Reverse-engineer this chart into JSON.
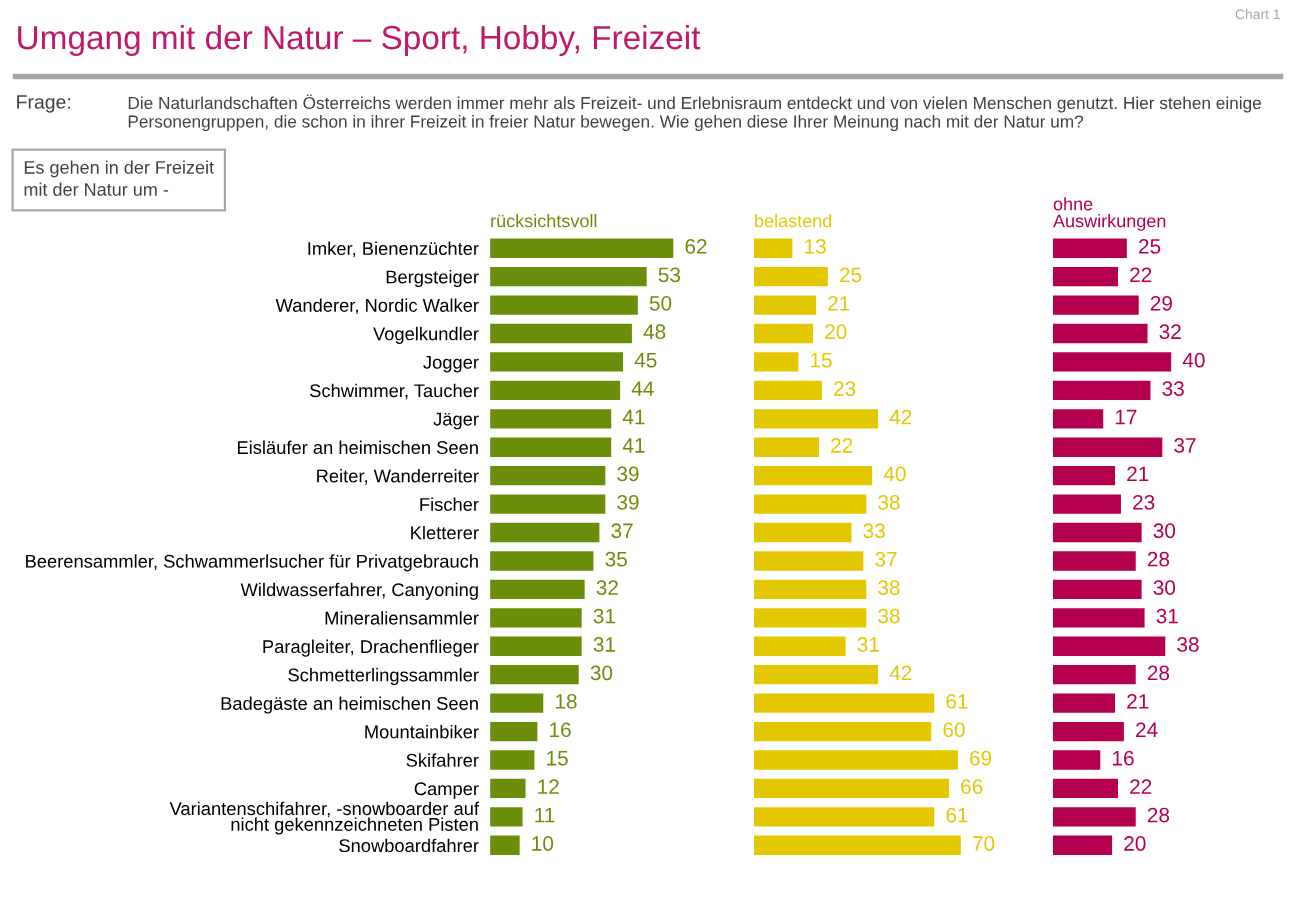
{
  "chart_data": [
    {
      "type": "bar",
      "orientation": "horizontal",
      "data_labels": true,
      "tick_labels": "y",
      "title": "Umgang mit der Natur – Sport, Hobby, Freizeit",
      "annotations": [
        "Chart 1",
        "Frage:",
        "Die Naturlandschaften Österreichs werden immer mehr als Freizeit- und Erlebnisraum entdeckt und von vielen Menschen genutzt. Hier stehen einige\nPersonengruppen, die schon in ihrer Freizeit in freier Natur bewegen. Wie gehen diese Ihrer Meinung nach mit der Natur um?",
        "Es gehen in der Freizeit\nmit der Natur um -"
      ],
      "categories": [
        "Imker, Bienenzüchter",
        "Bergsteiger",
        "Wanderer, Nordic Walker",
        "Vogelkundler",
        "Jogger",
        "Schwimmer, Taucher",
        "Jäger",
        "Eisläufer an heimischen Seen",
        "Reiter, Wanderreiter",
        "Fischer",
        "Kletterer",
        "Beerensammler, Schwammerlsucher für Privatgebrauch",
        "Wildwasserfahrer, Canyoning",
        "Mineraliensammler",
        "Paragleiter, Drachenflieger",
        "Schmetterlingssammler",
        "Badegäste an heimischen Seen",
        "Mountainbiker",
        "Skifahrer",
        "Camper",
        "Variantenschifahrer, -snowboarder auf\nnicht gekennzeichneten Pisten",
        "Snowboardfahrer"
      ],
      "series": [
        {
          "name": "rücksichtsvoll",
          "color": "#6b8e0a",
          "values": [
            62,
            53,
            50,
            48,
            45,
            44,
            41,
            41,
            39,
            39,
            37,
            35,
            32,
            31,
            31,
            30,
            18,
            16,
            15,
            12,
            11,
            10
          ]
        }
      ]
    },
    {
      "type": "bar",
      "orientation": "horizontal",
      "data_labels": true,
      "tick_labels": false,
      "categories": [
        null,
        null,
        null,
        null,
        null,
        null,
        null,
        null,
        null,
        null,
        null,
        null,
        null,
        null,
        null,
        null,
        null,
        null,
        null,
        null,
        null,
        null
      ],
      "series": [
        {
          "name": "belastend",
          "color": "#e3c800",
          "values": [
            13,
            25,
            21,
            20,
            15,
            23,
            42,
            22,
            40,
            38,
            33,
            37,
            38,
            38,
            31,
            42,
            61,
            60,
            69,
            66,
            61,
            70
          ]
        }
      ]
    },
    {
      "type": "bar",
      "orientation": "horizontal",
      "data_labels": true,
      "tick_labels": false,
      "categories": [
        null,
        null,
        null,
        null,
        null,
        null,
        null,
        null,
        null,
        null,
        null,
        null,
        null,
        null,
        null,
        null,
        null,
        null,
        null,
        null,
        null,
        null
      ],
      "series": [
        {
          "name": "ohne\nAuswirkungen",
          "color": "#b5004f",
          "values": [
            25,
            22,
            29,
            32,
            40,
            33,
            17,
            37,
            21,
            23,
            30,
            28,
            30,
            31,
            38,
            28,
            21,
            24,
            16,
            22,
            28,
            20
          ]
        }
      ]
    }
  ]
}
